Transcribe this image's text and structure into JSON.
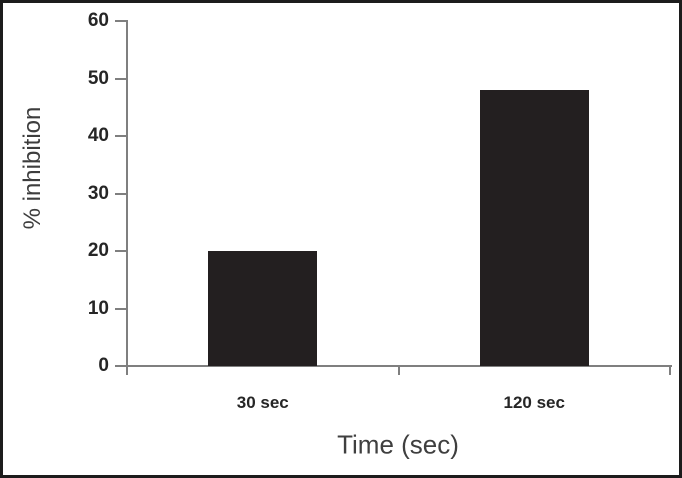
{
  "figure": {
    "background": "#ffffff",
    "border_color": "#1c1c1c"
  },
  "chart_data": {
    "type": "bar",
    "categories": [
      "30 sec",
      "120 sec"
    ],
    "values": [
      20,
      48
    ],
    "xlabel": "Time (sec)",
    "ylabel": "% inhibition",
    "ylim": [
      0,
      60
    ],
    "yticks": [
      0,
      10,
      20,
      30,
      40,
      50,
      60
    ],
    "grid": false,
    "legend": "none",
    "bar_color": "#231f20",
    "axis_color": "#7f7f7f",
    "tick_label_color": "#262626",
    "axis_title_color": "#3f3f3f"
  }
}
